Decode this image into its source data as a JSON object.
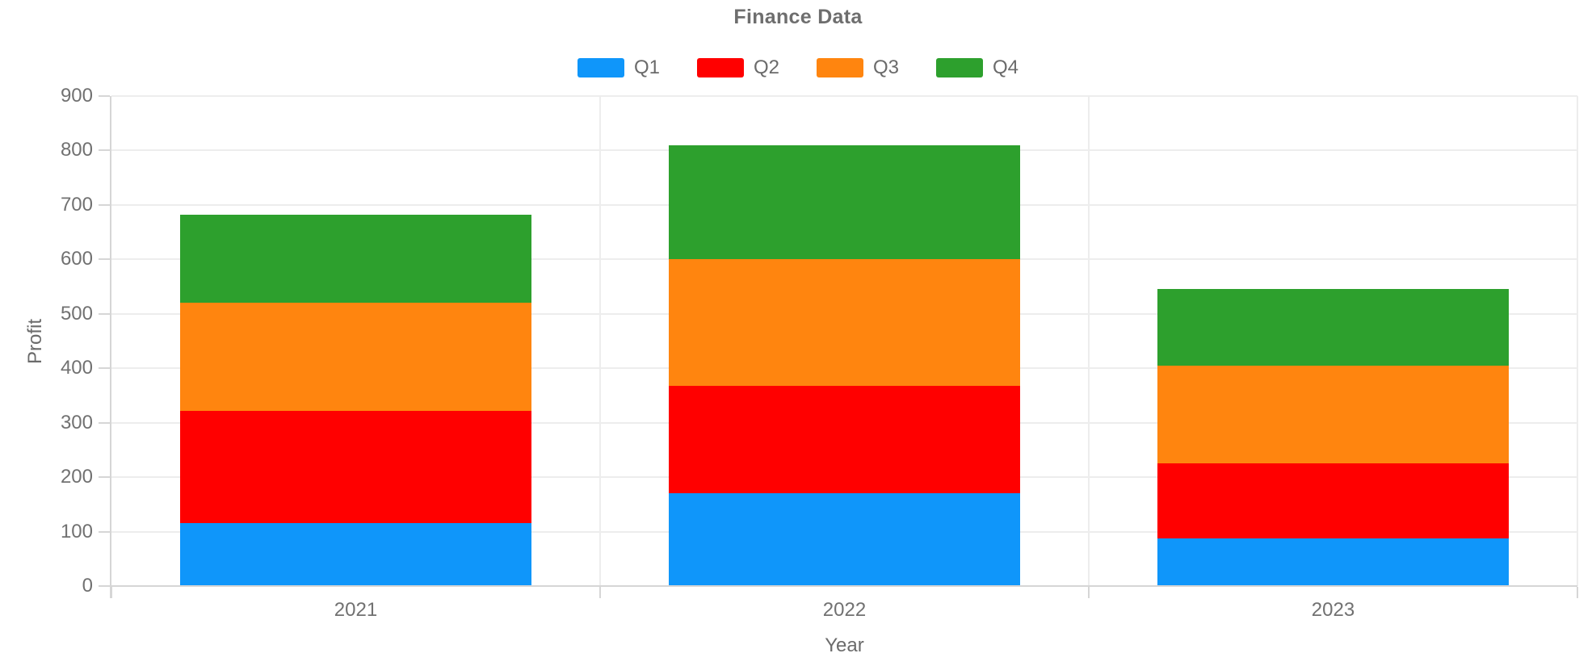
{
  "title": "Finance Data",
  "chart_data": {
    "type": "bar",
    "stacked": true,
    "title": "Finance Data",
    "xlabel": "Year",
    "ylabel": "Profit",
    "categories": [
      "2021",
      "2022",
      "2023"
    ],
    "series": [
      {
        "name": "Q1",
        "color": "#0f96fa",
        "values": [
          115,
          170,
          88
        ]
      },
      {
        "name": "Q2",
        "color": "#ff0000",
        "values": [
          207,
          198,
          137
        ]
      },
      {
        "name": "Q3",
        "color": "#ff850f",
        "values": [
          198,
          232,
          180
        ]
      },
      {
        "name": "Q4",
        "color": "#2da02d",
        "values": [
          162,
          210,
          140
        ]
      }
    ],
    "ylim": [
      0,
      900
    ],
    "yticks": [
      0,
      100,
      200,
      300,
      400,
      500,
      600,
      700,
      800,
      900
    ],
    "grid": true,
    "legend_position": "top"
  },
  "colors": {
    "background": "#ffffff",
    "title_text": "#6e6e6e",
    "legend_text": "#6b6b6b",
    "tick_label_text": "#717171",
    "axis_title_text": "#6b6b6b",
    "gridline": "#ededed",
    "axis_line": "#d6d6d6"
  }
}
